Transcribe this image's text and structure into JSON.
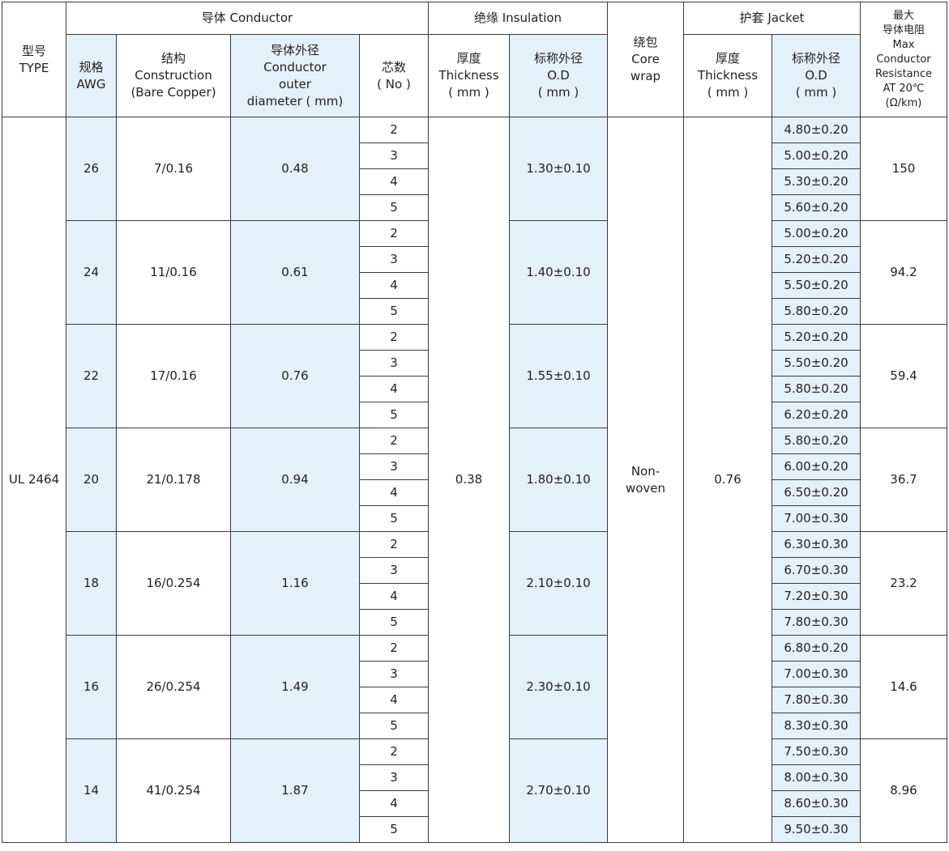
{
  "header": {
    "type": "型号\nTYPE",
    "conductor": "导体 Conductor",
    "awg": "规格\nAWG",
    "construction": "结构\nConstruction\n(Bare Copper)",
    "conductor_od": "导体外径\nConductor\nouter\ndiameter ( mm)",
    "cores": "芯数\n( No )",
    "insulation": "绝缘 Insulation",
    "ins_thickness": "厚度\nThickness\n( mm )",
    "ins_od": "标称外径\nO.D\n( mm )",
    "core_wrap": "绕包\nCore\nwrap",
    "jacket": "护套 Jacket",
    "jac_thickness": "厚度\nThickness\n( mm )",
    "jac_od": "标称外径\nO.D\n( mm )",
    "resistance": "最大\n导体电阻\nMax\nConductor\nResistance\nAT 20℃\n(Ω/km)"
  },
  "type_value": "UL 2464",
  "insulation_thickness": "0.38",
  "core_wrap_value": "Non-\nwoven",
  "jacket_thickness": "0.76",
  "colors": {
    "shade": "#e3f1fb",
    "border": "#3a3a3a"
  },
  "groups": [
    {
      "awg": "26",
      "construction": "7/0.16",
      "conductor_od": "0.48",
      "ins_od": "1.30±0.10",
      "resistance": "150",
      "rows": [
        {
          "cores": "2",
          "jac_od": "4.80±0.20"
        },
        {
          "cores": "3",
          "jac_od": "5.00±0.20"
        },
        {
          "cores": "4",
          "jac_od": "5.30±0.20"
        },
        {
          "cores": "5",
          "jac_od": "5.60±0.20"
        }
      ]
    },
    {
      "awg": "24",
      "construction": "11/0.16",
      "conductor_od": "0.61",
      "ins_od": "1.40±0.10",
      "resistance": "94.2",
      "rows": [
        {
          "cores": "2",
          "jac_od": "5.00±0.20"
        },
        {
          "cores": "3",
          "jac_od": "5.20±0.20"
        },
        {
          "cores": "4",
          "jac_od": "5.50±0.20"
        },
        {
          "cores": "5",
          "jac_od": "5.80±0.20"
        }
      ]
    },
    {
      "awg": "22",
      "construction": "17/0.16",
      "conductor_od": "0.76",
      "ins_od": "1.55±0.10",
      "resistance": "59.4",
      "rows": [
        {
          "cores": "2",
          "jac_od": "5.20±0.20"
        },
        {
          "cores": "3",
          "jac_od": "5.50±0.20"
        },
        {
          "cores": "4",
          "jac_od": "5.80±0.20"
        },
        {
          "cores": "5",
          "jac_od": "6.20±0.20"
        }
      ]
    },
    {
      "awg": "20",
      "construction": "21/0.178",
      "conductor_od": "0.94",
      "ins_od": "1.80±0.10",
      "resistance": "36.7",
      "rows": [
        {
          "cores": "2",
          "jac_od": "5.80±0.20"
        },
        {
          "cores": "3",
          "jac_od": "6.00±0.20"
        },
        {
          "cores": "4",
          "jac_od": "6.50±0.20"
        },
        {
          "cores": "5",
          "jac_od": "7.00±0.30"
        }
      ]
    },
    {
      "awg": "18",
      "construction": "16/0.254",
      "conductor_od": "1.16",
      "ins_od": "2.10±0.10",
      "resistance": "23.2",
      "rows": [
        {
          "cores": "2",
          "jac_od": "6.30±0.30"
        },
        {
          "cores": "3",
          "jac_od": "6.70±0.30"
        },
        {
          "cores": "4",
          "jac_od": "7.20±0.30"
        },
        {
          "cores": "5",
          "jac_od": "7.80±0.30"
        }
      ]
    },
    {
      "awg": "16",
      "construction": "26/0.254",
      "conductor_od": "1.49",
      "ins_od": "2.30±0.10",
      "resistance": "14.6",
      "rows": [
        {
          "cores": "2",
          "jac_od": "6.80±0.20"
        },
        {
          "cores": "3",
          "jac_od": "7.00±0.30"
        },
        {
          "cores": "4",
          "jac_od": "7.80±0.30"
        },
        {
          "cores": "5",
          "jac_od": "8.30±0.30"
        }
      ]
    },
    {
      "awg": "14",
      "construction": "41/0.254",
      "conductor_od": "1.87",
      "ins_od": "2.70±0.10",
      "resistance": "8.96",
      "rows": [
        {
          "cores": "2",
          "jac_od": "7.50±0.30"
        },
        {
          "cores": "3",
          "jac_od": "8.00±0.30"
        },
        {
          "cores": "4",
          "jac_od": "8.60±0.30"
        },
        {
          "cores": "5",
          "jac_od": "9.50±0.30"
        }
      ]
    }
  ]
}
